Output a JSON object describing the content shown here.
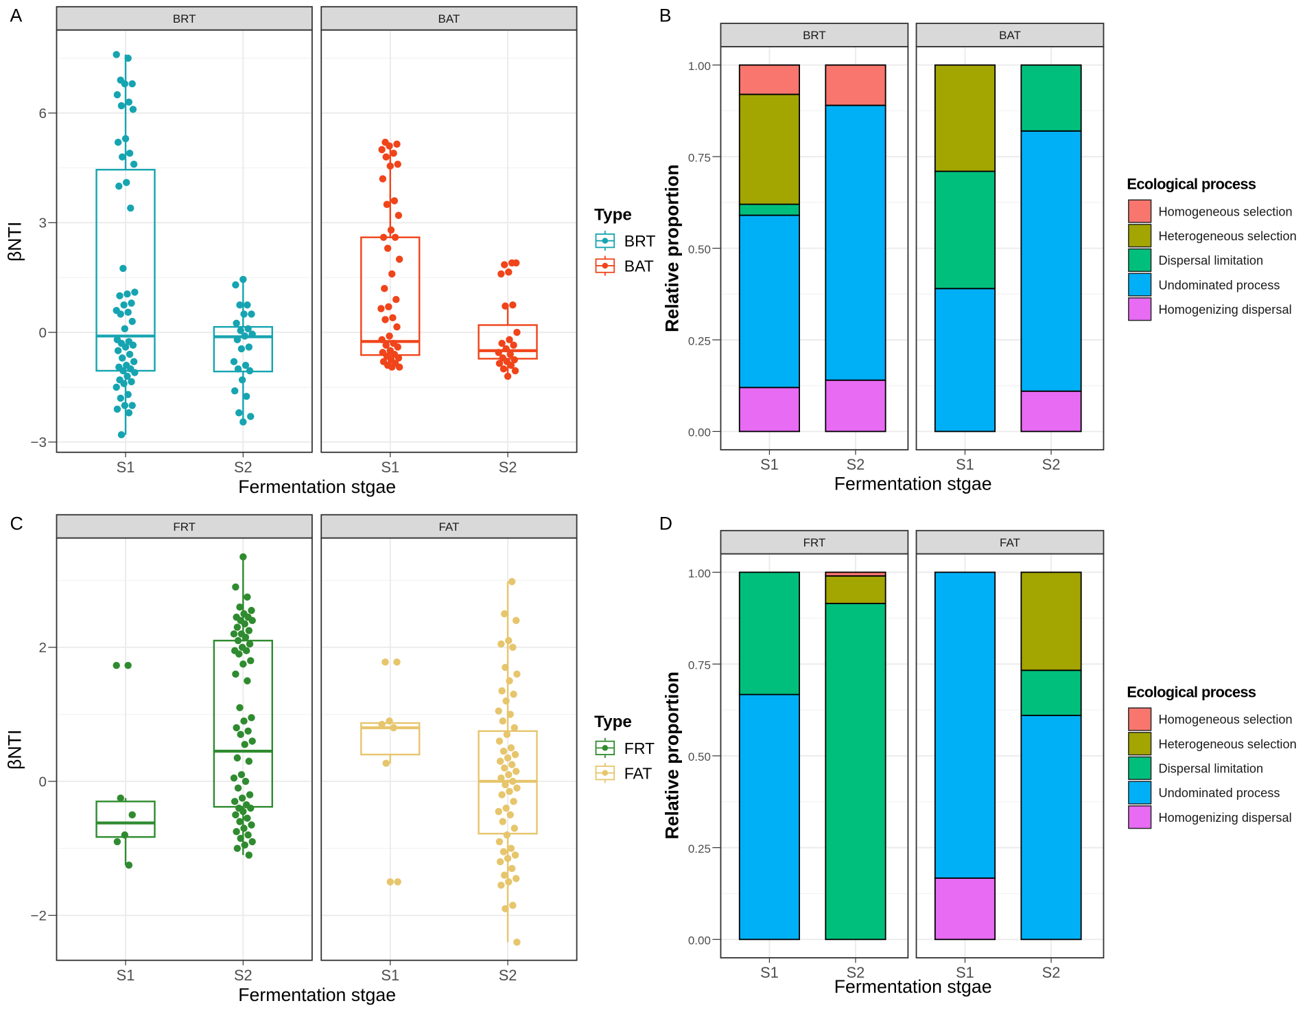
{
  "panel_labels": [
    "A",
    "B",
    "C",
    "D"
  ],
  "chart_data": [
    {
      "panel": "A",
      "type": "box",
      "xlabel": "Fermentation stgae",
      "ylabel": "βNTI",
      "yticks": [
        -3,
        0,
        3,
        6
      ],
      "ylim": [
        -3.28,
        8.27
      ],
      "grid": true,
      "legend": {
        "title": "Type",
        "placement": "right",
        "entries": [
          {
            "label": "BRT",
            "color": "#16a4b1"
          },
          {
            "label": "BAT",
            "color": "#f0441a"
          }
        ]
      },
      "facets": [
        {
          "label": "BRT",
          "color": "#16a4b1",
          "groups": [
            {
              "x": "S1",
              "stats": {
                "min": -2.8,
                "q1": -1.05,
                "median": -0.1,
                "q3": 4.45,
                "max": 7.6
              },
              "points": [
                7.6,
                7.5,
                6.9,
                6.8,
                6.8,
                6.5,
                6.3,
                6.2,
                6.1,
                5.3,
                5.2,
                4.9,
                4.8,
                4.6,
                4.1,
                4.0,
                3.4,
                1.75,
                1.1,
                1.05,
                1.0,
                0.8,
                0.75,
                0.6,
                0.55,
                0.5,
                0.3,
                0.1,
                -0.2,
                -0.25,
                -0.3,
                -0.35,
                -0.4,
                -0.5,
                -0.6,
                -0.7,
                -0.8,
                -0.9,
                -0.95,
                -1.0,
                -1.05,
                -1.1,
                -1.2,
                -1.3,
                -1.35,
                -1.4,
                -1.5,
                -1.7,
                -1.8,
                -2.0,
                -2.0,
                -2.1,
                -2.2,
                -2.8
              ]
            },
            {
              "x": "S2",
              "stats": {
                "min": -2.45,
                "q1": -1.07,
                "median": -0.12,
                "q3": 0.15,
                "max": 1.45
              },
              "points": [
                1.45,
                1.3,
                0.75,
                0.75,
                0.5,
                0.5,
                0.25,
                0.1,
                0.05,
                -0.05,
                -0.1,
                -0.2,
                -0.4,
                -0.45,
                -0.8,
                -0.9,
                -1.0,
                -1.05,
                -1.3,
                -1.6,
                -1.75,
                -2.2,
                -2.3,
                -2.45
              ]
            }
          ]
        },
        {
          "label": "BAT",
          "color": "#f0441a",
          "groups": [
            {
              "x": "S1",
              "stats": {
                "min": -0.95,
                "q1": -0.62,
                "median": -0.25,
                "q3": 2.6,
                "max": 5.1
              },
              "points": [
                5.2,
                5.15,
                5.1,
                5.0,
                4.9,
                4.8,
                4.6,
                4.55,
                4.2,
                3.6,
                3.5,
                3.2,
                2.8,
                2.6,
                2.6,
                2.3,
                2.0,
                1.6,
                1.2,
                0.9,
                0.7,
                0.65,
                0.4,
                0.35,
                0.15,
                -0.1,
                -0.2,
                -0.3,
                -0.35,
                -0.4,
                -0.5,
                -0.55,
                -0.6,
                -0.65,
                -0.7,
                -0.75,
                -0.8,
                -0.85,
                -0.9,
                -0.95,
                -0.95
              ]
            },
            {
              "x": "S2",
              "stats": {
                "min": -1.2,
                "q1": -0.72,
                "median": -0.5,
                "q3": 0.2,
                "max": 0.72
              },
              "points": [
                1.9,
                1.85,
                1.9,
                1.65,
                1.6,
                0.75,
                0.72,
                0.0,
                -0.2,
                -0.3,
                -0.35,
                -0.45,
                -0.55,
                -0.6,
                -0.7,
                -0.75,
                -0.8,
                -0.85,
                -0.9,
                -1.0,
                -1.05,
                -1.2
              ]
            }
          ]
        }
      ]
    },
    {
      "panel": "B",
      "type": "bar",
      "stacked": true,
      "xlabel": "Fermentation stgae",
      "ylabel": "Relative proportion",
      "yticks": [
        0.0,
        0.25,
        0.5,
        0.75,
        1.0
      ],
      "ylim": [
        -0.05,
        1.05
      ],
      "grid": true,
      "legend": {
        "title": "Ecological process",
        "placement": "right"
      },
      "categories_stack": [
        "Homogeneous selection",
        "Heterogeneous selection",
        "Dispersal limitation",
        "Undominated process",
        "Homogenizing dispersal"
      ],
      "colors": [
        "#F8766D",
        "#A3A500",
        "#00BF7D",
        "#00B0F6",
        "#E76BF3"
      ],
      "facets": [
        {
          "label": "BRT",
          "bars": [
            {
              "x": "S1",
              "values": [
                0.08,
                0.3,
                0.03,
                0.47,
                0.12
              ]
            },
            {
              "x": "S2",
              "values": [
                0.11,
                0.0,
                0.0,
                0.75,
                0.14
              ]
            }
          ]
        },
        {
          "label": "BAT",
          "bars": [
            {
              "x": "S1",
              "values": [
                0.0,
                0.29,
                0.32,
                0.39,
                0.0
              ]
            },
            {
              "x": "S2",
              "values": [
                0.0,
                0.0,
                0.18,
                0.71,
                0.11
              ]
            }
          ]
        }
      ]
    },
    {
      "panel": "C",
      "type": "box",
      "xlabel": "Fermentation stgae",
      "ylabel": "βNTI",
      "yticks": [
        -2,
        0,
        2
      ],
      "ylim": [
        -2.67,
        3.63
      ],
      "grid": true,
      "legend": {
        "title": "Type",
        "placement": "right",
        "entries": [
          {
            "label": "FRT",
            "color": "#2f8b2f"
          },
          {
            "label": "FAT",
            "color": "#e6c56c"
          }
        ]
      },
      "facets": [
        {
          "label": "FRT",
          "color": "#2f8b2f",
          "groups": [
            {
              "x": "S1",
              "stats": {
                "min": -1.25,
                "q1": -0.83,
                "median": -0.62,
                "q3": -0.3,
                "max": -0.25
              },
              "points": [
                1.73,
                1.73,
                -0.25,
                -0.5,
                -0.8,
                -0.9,
                -1.25
              ]
            },
            {
              "x": "S2",
              "stats": {
                "min": -1.1,
                "q1": -0.38,
                "median": 0.45,
                "q3": 2.1,
                "max": 3.35
              },
              "points": [
                3.35,
                2.9,
                2.75,
                2.6,
                2.55,
                2.5,
                2.45,
                2.45,
                2.4,
                2.4,
                2.35,
                2.3,
                2.25,
                2.2,
                2.2,
                2.15,
                2.1,
                2.05,
                2.0,
                1.95,
                1.95,
                1.9,
                1.8,
                1.75,
                1.6,
                1.5,
                1.1,
                0.95,
                0.9,
                0.8,
                0.75,
                0.7,
                0.6,
                0.55,
                0.35,
                0.3,
                0.1,
                0.05,
                0.0,
                -0.1,
                -0.2,
                -0.25,
                -0.3,
                -0.35,
                -0.4,
                -0.4,
                -0.45,
                -0.5,
                -0.55,
                -0.6,
                -0.65,
                -0.7,
                -0.75,
                -0.8,
                -0.85,
                -0.9,
                -0.95,
                -1.0,
                -1.1
              ]
            }
          ]
        },
        {
          "label": "FAT",
          "color": "#e6c56c",
          "groups": [
            {
              "x": "S1",
              "stats": {
                "min": 0.27,
                "q1": 0.4,
                "median": 0.8,
                "q3": 0.87,
                "max": 0.9
              },
              "points": [
                1.78,
                1.78,
                0.9,
                0.85,
                0.8,
                0.27,
                -1.5,
                -1.5
              ]
            },
            {
              "x": "S2",
              "stats": {
                "min": -2.4,
                "q1": -0.78,
                "median": 0.0,
                "q3": 0.75,
                "max": 2.98
              },
              "points": [
                2.98,
                2.5,
                2.4,
                2.1,
                2.05,
                2.0,
                1.7,
                1.6,
                1.5,
                1.35,
                1.3,
                1.2,
                1.05,
                1.0,
                0.9,
                0.8,
                0.7,
                0.6,
                0.5,
                0.45,
                0.4,
                0.35,
                0.3,
                0.25,
                0.2,
                0.15,
                0.1,
                0.05,
                0.0,
                -0.05,
                -0.1,
                -0.15,
                -0.2,
                -0.3,
                -0.4,
                -0.45,
                -0.5,
                -0.6,
                -0.7,
                -0.8,
                -0.9,
                -1.0,
                -1.05,
                -1.1,
                -1.15,
                -1.2,
                -1.3,
                -1.4,
                -1.45,
                -1.5,
                -1.55,
                -1.85,
                -1.9,
                -2.4
              ]
            }
          ]
        }
      ]
    },
    {
      "panel": "D",
      "type": "bar",
      "stacked": true,
      "xlabel": "Fermentation stgae",
      "ylabel": "Relative proportion",
      "yticks": [
        0.0,
        0.25,
        0.5,
        0.75,
        1.0
      ],
      "ylim": [
        -0.05,
        1.05
      ],
      "grid": true,
      "legend": {
        "title": "Ecological process",
        "placement": "right"
      },
      "categories_stack": [
        "Homogeneous selection",
        "Heterogeneous selection",
        "Dispersal limitation",
        "Undominated process",
        "Homogenizing dispersal"
      ],
      "colors": [
        "#F8766D",
        "#A3A500",
        "#00BF7D",
        "#00B0F6",
        "#E76BF3"
      ],
      "facets": [
        {
          "label": "FRT",
          "bars": [
            {
              "x": "S1",
              "values": [
                0.0,
                0.0,
                0.333,
                0.667,
                0.0
              ]
            },
            {
              "x": "S2",
              "values": [
                0.01,
                0.075,
                0.915,
                0.0,
                0.0
              ]
            }
          ]
        },
        {
          "label": "FAT",
          "bars": [
            {
              "x": "S1",
              "values": [
                0.0,
                0.0,
                0.0,
                0.833,
                0.167
              ]
            },
            {
              "x": "S2",
              "values": [
                0.0,
                0.267,
                0.123,
                0.61,
                0.0
              ]
            }
          ]
        }
      ]
    }
  ]
}
